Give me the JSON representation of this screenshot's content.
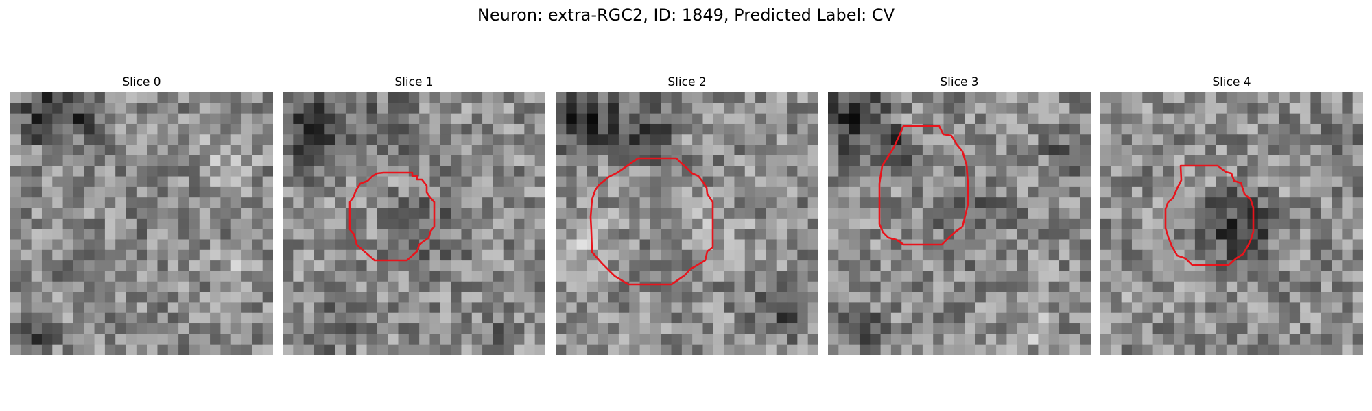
{
  "figure": {
    "title": "Neuron: extra-RGC2, ID: 1849, Predicted Label: CV"
  },
  "panels": [
    {
      "label": "Slice 0",
      "has_contour": false
    },
    {
      "label": "Slice 1",
      "has_contour": true
    },
    {
      "label": "Slice 2",
      "has_contour": true
    },
    {
      "label": "Slice 3",
      "has_contour": true
    },
    {
      "label": "Slice 4",
      "has_contour": true
    }
  ],
  "colors": {
    "contour": "#e8141c",
    "background": "#ffffff"
  }
}
